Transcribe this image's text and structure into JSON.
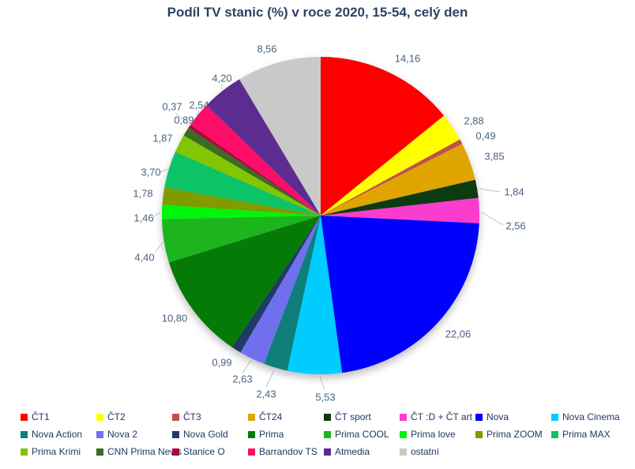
{
  "title": "Podíl TV stanic (%) v roce 2020, 15-54, celý den",
  "styles": {
    "title_color": "#2E4262",
    "value_label_color": "#4A6283",
    "leader_line_color": "#B9C2D6",
    "legend_text_color": "#1F3864",
    "background_color": "#FFFFFF"
  },
  "chart_data": {
    "type": "pie",
    "title": "Podíl TV stanic (%) v roce 2020, 15-54, celý den",
    "legend_position": "bottom",
    "values_format": "decimal-comma",
    "start_angle_deg": 0,
    "direction": "clockwise",
    "slices": [
      {
        "name": "ČT1",
        "value": 14.16,
        "label": "14,16",
        "color": "#FF0000"
      },
      {
        "name": "ČT2",
        "value": 2.88,
        "label": "2,88",
        "color": "#FFFF00"
      },
      {
        "name": "ČT3",
        "value": 0.49,
        "label": "0,49",
        "color": "#C0504D"
      },
      {
        "name": "ČT24",
        "value": 3.85,
        "label": "3,85",
        "color": "#E0A500"
      },
      {
        "name": "ČT sport",
        "value": 1.84,
        "label": "1,84",
        "color": "#0B3B10"
      },
      {
        "name": "ČT :D + ČT art",
        "value": 2.56,
        "label": "2,56",
        "color": "#FA3CCF"
      },
      {
        "name": "Nova",
        "value": 22.06,
        "label": "22,06",
        "color": "#0000FF"
      },
      {
        "name": "Nova Cinema",
        "value": 5.53,
        "label": "5,53",
        "color": "#00CCFF"
      },
      {
        "name": "Nova Action",
        "value": 2.43,
        "label": "2,43",
        "color": "#0E7F7B"
      },
      {
        "name": "Nova 2",
        "value": 2.63,
        "label": "2,63",
        "color": "#7070EE"
      },
      {
        "name": "Nova Gold",
        "value": 0.99,
        "label": "0,99",
        "color": "#1E3A66"
      },
      {
        "name": "Prima",
        "value": 10.8,
        "label": "10,80",
        "color": "#067A06"
      },
      {
        "name": "Prima COOL",
        "value": 4.4,
        "label": "4,40",
        "color": "#1DB51D"
      },
      {
        "name": "Prima love",
        "value": 1.46,
        "label": "1,46",
        "color": "#00F50A"
      },
      {
        "name": "Prima ZOOM",
        "value": 1.78,
        "label": "1,78",
        "color": "#7F9B00"
      },
      {
        "name": "Prima MAX",
        "value": 3.7,
        "label": "3,70",
        "color": "#0CC368"
      },
      {
        "name": "Prima Krimi",
        "value": 1.87,
        "label": "1,87",
        "color": "#82C503"
      },
      {
        "name": "CNN Prima News",
        "value": 0.89,
        "label": "0,89",
        "color": "#3C6B22"
      },
      {
        "name": "Stanice O",
        "value": 0.37,
        "label": "0,37",
        "color": "#A60A3C"
      },
      {
        "name": "Barrandov TS",
        "value": 2.54,
        "label": "2,54",
        "color": "#FC0E68"
      },
      {
        "name": "Atmedia",
        "value": 4.2,
        "label": "4,20",
        "color": "#5B2D90"
      },
      {
        "name": "ostatní",
        "value": 8.56,
        "label": "8,56",
        "color": "#C9C9C9"
      }
    ]
  }
}
